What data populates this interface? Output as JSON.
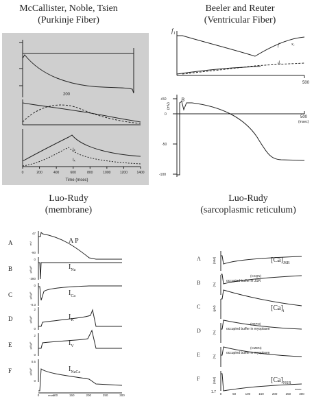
{
  "panels": {
    "mns": {
      "title": "McCallister, Noble, Tsien",
      "subtitle": "(Purkinje Fiber)",
      "x_axis_label": "Time (msec)",
      "x_ticks": [
        "0",
        "200",
        "400",
        "600",
        "800",
        "1000",
        "1200",
        "1400"
      ],
      "inner_tick": "200",
      "curve_labels": [
        "Iₖ",
        "Iₓ"
      ]
    },
    "br": {
      "title": "Beeler and Reuter",
      "subtitle": "(Ventricular Fiber)",
      "top_label": "f₁",
      "bottom_label": "B",
      "right_tick_top": "500",
      "right_tick_bottom": "500",
      "unit_bottom": "(msec)",
      "y_unit": "(mV)",
      "y_ticks": [
        "+50",
        "0",
        "-50",
        "-100"
      ],
      "curve_labels": [
        "f",
        "x₁",
        "d₁"
      ]
    },
    "lr_mem": {
      "title": "Luo-Rudy",
      "subtitle": "(membrane)",
      "rows": [
        {
          "letter": "A",
          "label": "A P",
          "ytop": "47",
          "ybot": "-90",
          "unit": "mV"
        },
        {
          "letter": "B",
          "label": "I",
          "sub": "Na",
          "ytop": "0",
          "ybot": "-380",
          "unit": "μA/μF"
        },
        {
          "letter": "C",
          "label": "I",
          "sub": "Ca",
          "ytop": "0",
          "ybot": "-0.3",
          "unit": "μA/μF"
        },
        {
          "letter": "D",
          "label": "I",
          "sub": "K",
          "ytop": "2",
          "ybot": "0",
          "unit": "μA/μF"
        },
        {
          "letter": "E",
          "label": "I",
          "sub": "V",
          "ytop": "2",
          "ybot": "0",
          "unit": "μA/μF"
        },
        {
          "letter": "F",
          "label": "I",
          "sub": "NaCa",
          "ytop": "0.5",
          "ybot": "0",
          "unit": "μA/μF"
        }
      ],
      "x_ticks": [
        "0",
        "100",
        "150",
        "200",
        "250",
        "300"
      ],
      "x_unit": "msec"
    },
    "lr_sr": {
      "title": "Luo-Rudy",
      "subtitle": "(sarcoplasmic reticulum)",
      "rows": [
        {
          "letter": "A",
          "label": "[Ca]",
          "sub": "JSR",
          "unit": "(mM)"
        },
        {
          "letter": "B",
          "label": "occupied buffer in JSR",
          "note": "(CSQN)",
          "unit": "(%)"
        },
        {
          "letter": "C",
          "label": "[Ca]",
          "sub": "i",
          "unit": "(μM)"
        },
        {
          "letter": "D",
          "label": "occupied buffer in myoplasm",
          "note": "(TRPN)",
          "unit": "(%)"
        },
        {
          "letter": "E",
          "label": "occupied buffer in myoplasm",
          "note": "(CMDN)",
          "unit": "(%)"
        },
        {
          "letter": "F",
          "label": "[Ca]",
          "sub": "NSR",
          "unit": "(mM)"
        }
      ],
      "x_ticks": [
        "0",
        "50",
        "100",
        "150",
        "200",
        "250",
        "300"
      ],
      "x_unit": "msec",
      "bottom_tick": "1.7"
    }
  }
}
